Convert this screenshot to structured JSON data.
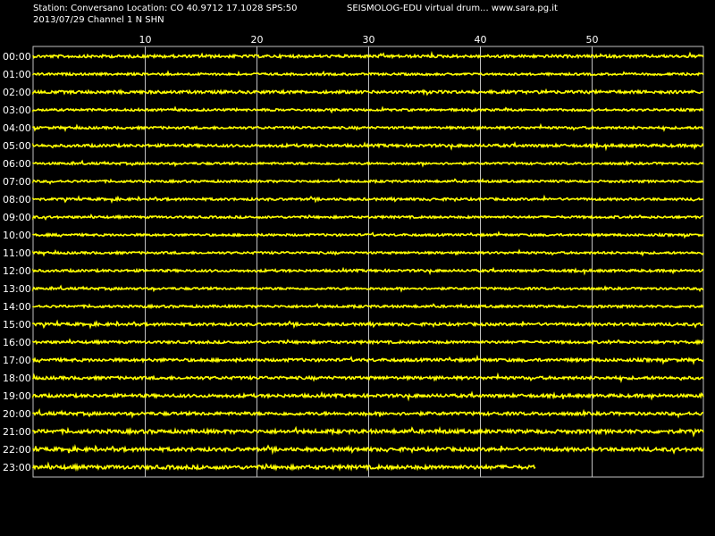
{
  "header": {
    "station_line": "Station: Conversano Location: CO 40.9712 17.1028 SPS:50",
    "title": "SEISMOLOG-EDU virtual drum... www.sara.pg.it",
    "date_line": "2013/07/29  Channel 1 N SHN"
  },
  "chart_data": {
    "type": "line",
    "title": "SEISMOLOG-EDU virtual drum... www.sara.pg.it",
    "xlabel": "",
    "ylabel": "",
    "x_ticks": [
      10,
      20,
      30,
      40,
      50
    ],
    "xlim": [
      0,
      60
    ],
    "grid": true,
    "rows": [
      "00:00",
      "01:00",
      "02:00",
      "03:00",
      "04:00",
      "05:00",
      "06:00",
      "07:00",
      "08:00",
      "09:00",
      "10:00",
      "11:00",
      "12:00",
      "13:00",
      "14:00",
      "15:00",
      "16:00",
      "17:00",
      "18:00",
      "19:00",
      "20:00",
      "21:00",
      "22:00",
      "23:00"
    ],
    "amplitudes": [
      1.5,
      1.2,
      1.6,
      1.2,
      1.3,
      1.5,
      1.2,
      1.2,
      1.3,
      1.2,
      1.2,
      1.2,
      1.3,
      1.2,
      1.3,
      1.5,
      1.4,
      1.6,
      1.6,
      1.7,
      1.7,
      2.0,
      1.9,
      2.0
    ],
    "last_row_end_minute": 45,
    "trace_color": "#ffff00",
    "grid_color": "#c0c0c0",
    "background_color": "#000000"
  }
}
